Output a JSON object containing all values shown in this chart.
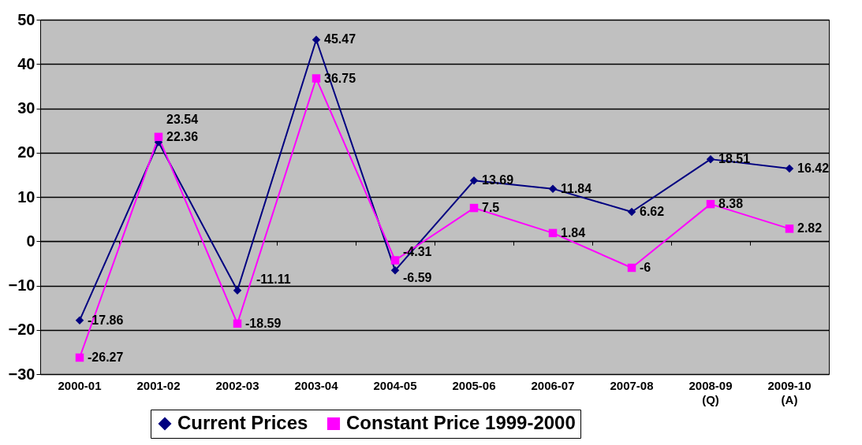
{
  "chart_data": {
    "type": "line",
    "categories": [
      "2000-01",
      "2001-02",
      "2002-03",
      "2003-04",
      "2004-05",
      "2005-06",
      "2006-07",
      "2007-08",
      "2008-09 (Q)",
      "2009-10 (A)"
    ],
    "series": [
      {
        "name": "Current Prices",
        "color": "#000080",
        "marker": "diamond",
        "values": [
          -17.86,
          22.36,
          -11.11,
          45.47,
          -6.59,
          13.69,
          11.84,
          6.62,
          18.51,
          16.42
        ]
      },
      {
        "name": "Constant Price 1999-2000",
        "color": "#ff00ff",
        "marker": "square",
        "values": [
          -26.27,
          23.54,
          -18.59,
          36.75,
          -4.31,
          7.5,
          1.84,
          -6,
          8.38,
          2.82
        ]
      }
    ],
    "ylim": [
      -30,
      50
    ],
    "yticks": [
      -30,
      -20,
      -10,
      0,
      10,
      20,
      30,
      40,
      50
    ],
    "grid": "y",
    "legend": "bottom",
    "data_labels": true,
    "line_style": "solid"
  }
}
